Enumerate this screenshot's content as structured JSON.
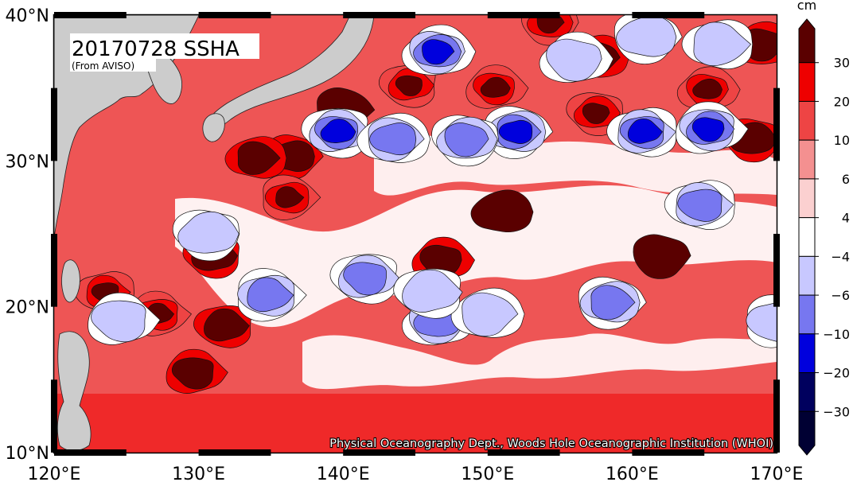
{
  "map": {
    "title": "20170728 SSHA",
    "source_note": "(From AVISO)",
    "credit": "Physical Oceanography Dept., Woods Hole Oceanographic Institution (WHOI)",
    "lon_labels": [
      "120°E",
      "130°E",
      "140°E",
      "150°E",
      "160°E",
      "170°E"
    ],
    "lat_labels": [
      "10°N",
      "20°N",
      "30°N",
      "40°N"
    ],
    "lon_range": [
      120,
      170
    ],
    "lat_range": [
      10,
      40
    ],
    "land_color": "#cccccc",
    "ocean_background": "#ee5555"
  },
  "colorbar": {
    "unit": "cm",
    "tick_labels": [
      "30",
      "20",
      "10",
      "6",
      "4",
      "−4",
      "−6",
      "−10",
      "−20",
      "−30"
    ],
    "colors": [
      "#5a0000",
      "#ee0000",
      "#ee4444",
      "#f49090",
      "#fbd0d0",
      "#ffffff",
      "#c8c8ff",
      "#7777f0",
      "#0000dd",
      "#00005e",
      "#000033"
    ]
  },
  "features": {
    "warm_eddies": [
      {
        "lon": 144.6,
        "lat": 35.2,
        "level": 0
      },
      {
        "lon": 150.5,
        "lat": 35.0,
        "level": 0
      },
      {
        "lon": 157.5,
        "lat": 33.3,
        "level": 0
      },
      {
        "lon": 165.2,
        "lat": 34.9,
        "level": 0
      },
      {
        "lon": 154.3,
        "lat": 39.5,
        "level": 0
      },
      {
        "lon": 157.6,
        "lat": 37.1,
        "level": 1
      },
      {
        "lon": 136.5,
        "lat": 30.3,
        "level": 1
      },
      {
        "lon": 134.0,
        "lat": 30.2,
        "level": 1
      },
      {
        "lon": 136.2,
        "lat": 27.5,
        "level": 0
      },
      {
        "lon": 123.6,
        "lat": 21.0,
        "level": 0
      },
      {
        "lon": 127.2,
        "lat": 19.5,
        "level": 0
      },
      {
        "lon": 131.8,
        "lat": 18.7,
        "level": 1
      },
      {
        "lon": 129.7,
        "lat": 15.5,
        "level": 1
      },
      {
        "lon": 131.0,
        "lat": 23.5,
        "level": 1
      },
      {
        "lon": 146.8,
        "lat": 23.2,
        "level": 1
      },
      {
        "lon": 168.3,
        "lat": 31.5,
        "level": 1
      },
      {
        "lon": 169.0,
        "lat": 38.0,
        "level": 1
      },
      {
        "lon": 162.0,
        "lat": 23.5,
        "level": 2
      },
      {
        "lon": 151.0,
        "lat": 26.5,
        "level": 2
      },
      {
        "lon": 140.0,
        "lat": 33.5,
        "level": 2
      }
    ],
    "cold_eddies": [
      {
        "lon": 139.6,
        "lat": 32.0,
        "level": 1
      },
      {
        "lon": 146.5,
        "lat": 37.5,
        "level": 1
      },
      {
        "lon": 152.0,
        "lat": 32.0,
        "level": 1
      },
      {
        "lon": 160.8,
        "lat": 32.0,
        "level": 1
      },
      {
        "lon": 165.3,
        "lat": 32.2,
        "level": 1
      },
      {
        "lon": 148.5,
        "lat": 31.5,
        "level": 2
      },
      {
        "lon": 143.5,
        "lat": 31.5,
        "level": 2
      },
      {
        "lon": 134.8,
        "lat": 20.8,
        "level": 2
      },
      {
        "lon": 141.6,
        "lat": 22.0,
        "level": 2
      },
      {
        "lon": 146.5,
        "lat": 19.0,
        "level": 2
      },
      {
        "lon": 158.5,
        "lat": 20.3,
        "level": 2
      },
      {
        "lon": 164.8,
        "lat": 27.0,
        "level": 2
      },
      {
        "lon": 124.6,
        "lat": 19.1,
        "level": 3
      },
      {
        "lon": 130.6,
        "lat": 25.0,
        "level": 3
      },
      {
        "lon": 150.0,
        "lat": 19.5,
        "level": 3
      },
      {
        "lon": 170.0,
        "lat": 19.0,
        "level": 3
      },
      {
        "lon": 146.0,
        "lat": 21.0,
        "level": 3
      },
      {
        "lon": 156.0,
        "lat": 37.0,
        "level": 3
      },
      {
        "lon": 161.0,
        "lat": 38.5,
        "level": 3
      },
      {
        "lon": 166.0,
        "lat": 38.0,
        "level": 3
      }
    ]
  }
}
